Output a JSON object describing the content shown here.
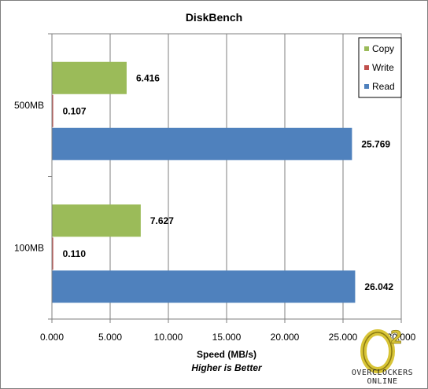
{
  "chart_data": {
    "type": "bar",
    "orientation": "horizontal",
    "title": "DiskBench",
    "xlabel": "Speed (MB/s)",
    "subtitle": "Higher is Better",
    "categories": [
      "500MB",
      "100MB"
    ],
    "series": [
      {
        "name": "Copy",
        "color": "#9bbb59",
        "values": [
          6.416,
          7.627
        ],
        "labels": [
          "6.416",
          "7.627"
        ]
      },
      {
        "name": "Write",
        "color": "#c0504d",
        "values": [
          0.107,
          0.11
        ],
        "labels": [
          "0.107",
          "0.110"
        ]
      },
      {
        "name": "Read",
        "color": "#4f81bd",
        "values": [
          25.769,
          26.042
        ],
        "labels": [
          "25.769",
          "26.042"
        ]
      }
    ],
    "xlim": [
      0,
      30
    ],
    "xticks": [
      0,
      5,
      10,
      15,
      20,
      25,
      30
    ],
    "xtick_labels": [
      "0.000",
      "5.000",
      "10.000",
      "15.000",
      "20.000",
      "25.000",
      "30.000"
    ],
    "grid": true,
    "legend_position": "top-right"
  },
  "logo": {
    "name": "overclockers-online-logo",
    "text": "OVERCLOCKERS ONLINE"
  }
}
